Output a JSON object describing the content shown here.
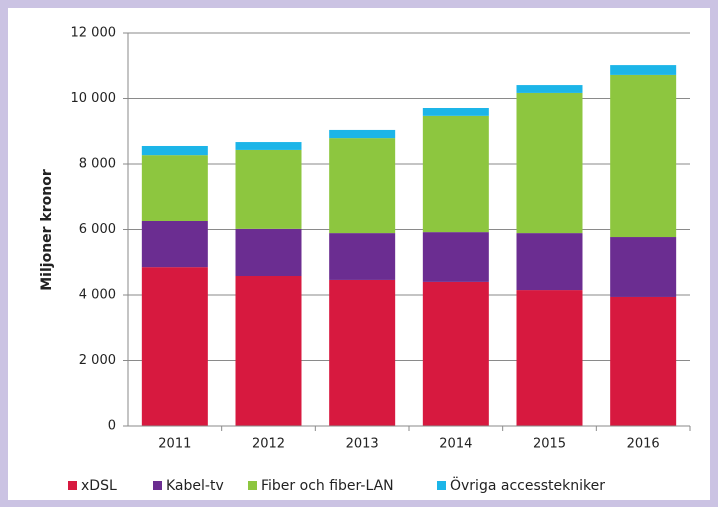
{
  "chart_data": {
    "type": "stacked_bar",
    "y_axis_label": "Miljoner kronor",
    "categories": [
      "2011",
      "2012",
      "2013",
      "2014",
      "2015",
      "2016"
    ],
    "series": [
      {
        "name": "xDSL",
        "color": "#d7193f",
        "values": [
          4850,
          4580,
          4460,
          4400,
          4150,
          3940
        ]
      },
      {
        "name": "Kabel-tv",
        "color": "#6b2d91",
        "values": [
          1410,
          1440,
          1430,
          1520,
          1740,
          1830
        ]
      },
      {
        "name": "Fiber och fiber-LAN",
        "color": "#8dc63f",
        "values": [
          2010,
          2410,
          2900,
          3550,
          4280,
          4950
        ]
      },
      {
        "name": "Övriga accesstekniker",
        "color": "#1cb5e8",
        "values": [
          280,
          240,
          250,
          240,
          240,
          300
        ]
      }
    ],
    "ylim": [
      0,
      12000
    ],
    "yticks": [
      0,
      {
        "value": 2000,
        "label": "2 000"
      },
      {
        "value": 4000,
        "label": "4 000"
      },
      {
        "value": 6000,
        "label": "6 000"
      },
      {
        "value": 8000,
        "label": "8 000"
      },
      {
        "value": 10000,
        "label": "10 000"
      },
      {
        "value": 12000,
        "label": "12 000"
      }
    ],
    "grid": true,
    "legend": "bottom"
  }
}
